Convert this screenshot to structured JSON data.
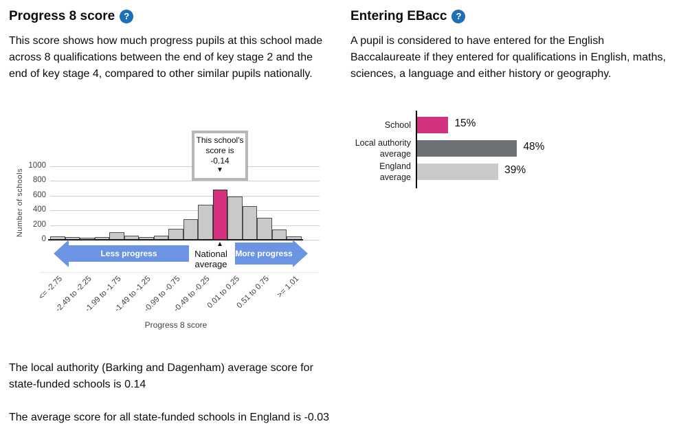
{
  "icons": {
    "help_glyph": "?"
  },
  "left": {
    "title": "Progress 8 score",
    "description": "This score shows how much progress pupils at this school made across 8 qualifications between the end of key stage 2 and the end of key stage 4, compared to other similar pupils nationally.",
    "footnotes": [
      "The local authority (Barking and Dagenham) average score for state-funded schools is 0.14",
      "The average score for all state-funded schools in England is -0.03"
    ]
  },
  "right": {
    "title": "Entering EBacc",
    "description": "A pupil is considered to have entered for the English Baccalaureate if they entered for qualifications in English, maths, sciences, a language and either history or geography."
  },
  "chart_data": [
    {
      "type": "bar",
      "subtype": "histogram",
      "xlabel": "Progress 8 score",
      "ylabel": "Number of schools",
      "ylim": [
        0,
        1000
      ],
      "yticks": [
        0,
        200,
        400,
        600,
        800,
        1000
      ],
      "grid": true,
      "categories": [
        "<= -2.75",
        "",
        "-2.49 to -2.25",
        "",
        "-1.99 to -1.75",
        "",
        "-1.49 to -1.25",
        "",
        "-0.99 to -0.75",
        "",
        "-0.49 to -0.25",
        "",
        "0.01 to 0.25",
        "",
        "0.51 to 0.75",
        "",
        ">= 1.01"
      ],
      "values": [
        50,
        35,
        25,
        40,
        100,
        55,
        35,
        55,
        150,
        280,
        475,
        680,
        590,
        455,
        300,
        140,
        45
      ],
      "highlight_index": 11,
      "annotations": {
        "school_score_label": "This school's score is",
        "school_score_value": "-0.14",
        "national_average_label": "National average",
        "less_progress_label": "Less progress",
        "more_progress_label": "More progress"
      },
      "colors": {
        "bar": "#c9c9c9",
        "bar_border": "#4f4f4f",
        "highlight": "#d4327e",
        "arrow": "#6b94e4",
        "callout_border": "#b5b8ba"
      }
    },
    {
      "type": "bar",
      "orientation": "horizontal",
      "categories": [
        "School",
        "Local authority average",
        "England average"
      ],
      "values": [
        15,
        48,
        39
      ],
      "value_labels": [
        "15%",
        "48%",
        "39%"
      ],
      "xlim": [
        0,
        100
      ],
      "colors": [
        "#d4327e",
        "#6d7276",
        "#c9c9c9"
      ]
    }
  ]
}
